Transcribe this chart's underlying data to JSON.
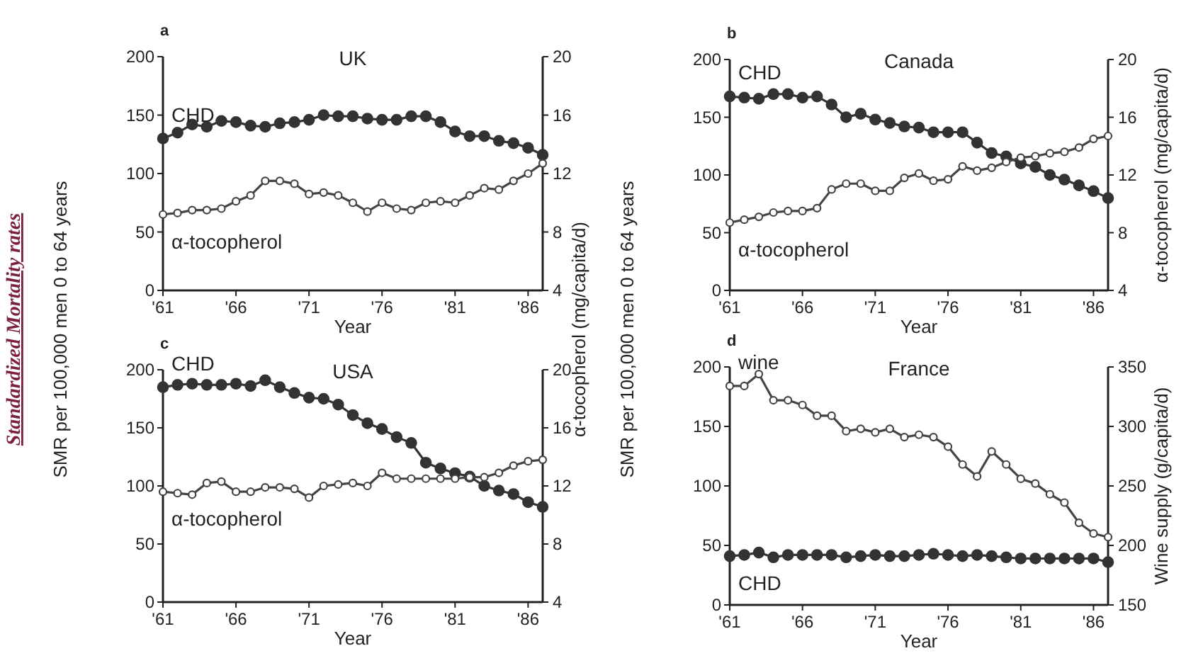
{
  "chart_data": [
    {
      "type": "line",
      "title": "UK",
      "annotations": [
        "a",
        "Standardized Mortality rates"
      ],
      "xlabel": "Year",
      "ylabel": "SMR per 100,000 men 0 to 64 years",
      "y2label": "α-tocopherol (mg/capita/d)",
      "x": [
        1961,
        1962,
        1963,
        1964,
        1965,
        1966,
        1967,
        1968,
        1969,
        1970,
        1971,
        1972,
        1973,
        1974,
        1975,
        1976,
        1977,
        1978,
        1979,
        1980,
        1981,
        1982,
        1983,
        1984,
        1985,
        1986,
        1987
      ],
      "xlim": [
        1961,
        1987
      ],
      "xticks": [
        {
          "value": 1961,
          "label": "'61"
        },
        {
          "value": 1966,
          "label": "'66"
        },
        {
          "value": 1971,
          "label": "'71"
        },
        {
          "value": 1976,
          "label": "'76"
        },
        {
          "value": 1981,
          "label": "'81"
        },
        {
          "value": 1986,
          "label": "'86"
        }
      ],
      "ylim": [
        0,
        200
      ],
      "yticks": [
        0,
        50,
        100,
        150,
        200
      ],
      "y2lim": [
        4,
        20
      ],
      "y2ticks": [
        4,
        8,
        12,
        16,
        20
      ],
      "marker": "circle",
      "series": [
        {
          "name": "CHD",
          "color": "#333333",
          "values": [
            130,
            135,
            142,
            140,
            145,
            144,
            141,
            140,
            143,
            144,
            146,
            150,
            149,
            149,
            147,
            146,
            146,
            149,
            149,
            144,
            136,
            132,
            132,
            128,
            126,
            122,
            116
          ]
        },
        {
          "name": "α-tocopherol",
          "color": "#444444",
          "axis": "y2",
          "values": [
            9.2,
            9.3,
            9.5,
            9.5,
            9.6,
            10.1,
            10.5,
            11.5,
            11.5,
            11.3,
            10.6,
            10.7,
            10.5,
            10.0,
            9.4,
            10.0,
            9.6,
            9.5,
            10.0,
            10.1,
            10.0,
            10.5,
            11.0,
            10.9,
            11.5,
            12.0,
            12.7
          ]
        }
      ]
    },
    {
      "type": "line",
      "title": "Canada",
      "annotations": [
        "b"
      ],
      "xlabel": "Year",
      "ylabel": "SMR per 100,000 men 0 to 64 years",
      "y2label": "α-tocopherol (mg/capita/d)",
      "x": [
        1961,
        1962,
        1963,
        1964,
        1965,
        1966,
        1967,
        1968,
        1969,
        1970,
        1971,
        1972,
        1973,
        1974,
        1975,
        1976,
        1977,
        1978,
        1979,
        1980,
        1981,
        1982,
        1983,
        1984,
        1985,
        1986,
        1987
      ],
      "xlim": [
        1961,
        1987
      ],
      "xticks": [
        {
          "value": 1961,
          "label": "'61"
        },
        {
          "value": 1966,
          "label": "'66"
        },
        {
          "value": 1971,
          "label": "'71"
        },
        {
          "value": 1976,
          "label": "'76"
        },
        {
          "value": 1981,
          "label": "'81"
        },
        {
          "value": 1986,
          "label": "'86"
        }
      ],
      "ylim": [
        0,
        200
      ],
      "yticks": [
        0,
        50,
        100,
        150,
        200
      ],
      "y2lim": [
        4,
        20
      ],
      "y2ticks": [
        4,
        8,
        12,
        16,
        20
      ],
      "marker": "circle",
      "series": [
        {
          "name": "CHD",
          "color": "#333333",
          "values": [
            168,
            167,
            166,
            170,
            170,
            167,
            168,
            161,
            150,
            153,
            148,
            145,
            142,
            141,
            137,
            137,
            137,
            128,
            119,
            116,
            110,
            107,
            100,
            96,
            91,
            86,
            80
          ]
        },
        {
          "name": "α-tocopherol",
          "color": "#444444",
          "axis": "y2",
          "values": [
            8.7,
            8.9,
            9.1,
            9.4,
            9.5,
            9.5,
            9.7,
            11.0,
            11.4,
            11.4,
            10.9,
            10.9,
            11.8,
            12.1,
            11.6,
            11.7,
            12.6,
            12.3,
            12.5,
            12.9,
            13.2,
            13.3,
            13.5,
            13.6,
            13.9,
            14.5,
            14.7
          ]
        }
      ]
    },
    {
      "type": "line",
      "title": "USA",
      "annotations": [
        "c"
      ],
      "xlabel": "Year",
      "x": [
        1961,
        1962,
        1963,
        1964,
        1965,
        1966,
        1967,
        1968,
        1969,
        1970,
        1971,
        1972,
        1973,
        1974,
        1975,
        1976,
        1977,
        1978,
        1979,
        1980,
        1981,
        1982,
        1983,
        1984,
        1985,
        1986,
        1987
      ],
      "xlim": [
        1961,
        1987
      ],
      "xticks": [
        {
          "value": 1961,
          "label": "'61"
        },
        {
          "value": 1966,
          "label": "'66"
        },
        {
          "value": 1971,
          "label": "'71"
        },
        {
          "value": 1976,
          "label": "'76"
        },
        {
          "value": 1981,
          "label": "'81"
        },
        {
          "value": 1986,
          "label": "'86"
        }
      ],
      "ylim": [
        0,
        200
      ],
      "yticks": [
        0,
        50,
        100,
        150,
        200
      ],
      "y2lim": [
        4,
        20
      ],
      "y2ticks": [
        4,
        8,
        12,
        16,
        20
      ],
      "marker": "circle",
      "series": [
        {
          "name": "CHD",
          "color": "#333333",
          "values": [
            185,
            187,
            188,
            187,
            187,
            188,
            186,
            191,
            185,
            180,
            176,
            175,
            170,
            161,
            154,
            149,
            142,
            137,
            120,
            115,
            111,
            108,
            100,
            96,
            93,
            86,
            82
          ]
        },
        {
          "name": "α-tocopherol",
          "color": "#444444",
          "axis": "y2",
          "values": [
            11.6,
            11.5,
            11.4,
            12.2,
            12.3,
            11.6,
            11.6,
            11.9,
            11.9,
            11.8,
            11.2,
            12.0,
            12.1,
            12.2,
            12.0,
            12.9,
            12.5,
            12.5,
            12.5,
            12.5,
            12.5,
            12.6,
            12.6,
            12.9,
            13.4,
            13.7,
            13.8
          ]
        }
      ]
    },
    {
      "type": "line",
      "title": "France",
      "annotations": [
        "d"
      ],
      "xlabel": "Year",
      "y2label": "Wine supply (g/capita/d)",
      "x": [
        1961,
        1962,
        1963,
        1964,
        1965,
        1966,
        1967,
        1968,
        1969,
        1970,
        1971,
        1972,
        1973,
        1974,
        1975,
        1976,
        1977,
        1978,
        1979,
        1980,
        1981,
        1982,
        1983,
        1984,
        1985,
        1986,
        1987
      ],
      "xlim": [
        1961,
        1987
      ],
      "xticks": [
        {
          "value": 1961,
          "label": "'61"
        },
        {
          "value": 1966,
          "label": "'66"
        },
        {
          "value": 1971,
          "label": "'71"
        },
        {
          "value": 1976,
          "label": "'76"
        },
        {
          "value": 1981,
          "label": "'81"
        },
        {
          "value": 1986,
          "label": "'86"
        }
      ],
      "ylim": [
        0,
        200
      ],
      "yticks": [
        0,
        50,
        100,
        150,
        200
      ],
      "y2lim": [
        150,
        350
      ],
      "y2ticks": [
        150,
        200,
        250,
        300,
        350
      ],
      "marker": "circle",
      "series": [
        {
          "name": "CHD",
          "color": "#333333",
          "values": [
            41,
            42,
            44,
            40,
            42,
            42,
            42,
            42,
            40,
            41,
            42,
            41,
            41,
            42,
            43,
            42,
            41,
            42,
            41,
            40,
            39,
            39,
            39,
            39,
            39,
            39,
            36
          ]
        },
        {
          "name": "wine",
          "color": "#444444",
          "axis": "y2",
          "values": [
            334,
            334,
            344,
            322,
            322,
            318,
            309,
            309,
            296,
            298,
            295,
            298,
            291,
            293,
            291,
            283,
            268,
            258,
            279,
            268,
            256,
            252,
            243,
            236,
            219,
            210,
            207
          ]
        }
      ]
    }
  ]
}
